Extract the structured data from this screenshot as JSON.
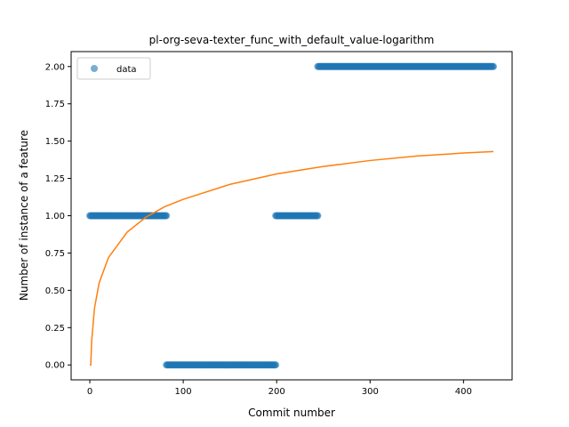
{
  "chart_data": {
    "type": "scatter",
    "title": "pl-org-seva-texter_func_with_default_value-logarithm",
    "xlabel": "Commit number",
    "ylabel": "Number of instance of a feature",
    "xlim": [
      -20,
      452
    ],
    "ylim": [
      -0.1,
      2.1
    ],
    "xticks": [
      0,
      100,
      200,
      300,
      400
    ],
    "yticks": [
      "0.00",
      "0.25",
      "0.50",
      "0.75",
      "1.00",
      "1.25",
      "1.50",
      "1.75",
      "2.00"
    ],
    "grid": false,
    "legend": {
      "placement": "top-left",
      "entries": [
        "data"
      ]
    },
    "series": [
      {
        "name": "data",
        "kind": "markers",
        "color": "#1f77b4",
        "segments": [
          {
            "x_start": 0,
            "x_end": 82,
            "y": 1
          },
          {
            "x_start": 82,
            "x_end": 199,
            "y": 0
          },
          {
            "x_start": 199,
            "x_end": 244,
            "y": 1
          },
          {
            "x_start": 244,
            "x_end": 432,
            "y": 2
          }
        ]
      },
      {
        "kind": "line",
        "color": "#ff7f0e",
        "model": "logarithmic",
        "x_range": [
          0,
          432
        ],
        "samples": [
          {
            "x": 0,
            "y": 0.0
          },
          {
            "x": 1,
            "y": 0.0
          },
          {
            "x": 2,
            "y": 0.16
          },
          {
            "x": 5,
            "y": 0.38
          },
          {
            "x": 10,
            "y": 0.55
          },
          {
            "x": 20,
            "y": 0.72
          },
          {
            "x": 40,
            "y": 0.89
          },
          {
            "x": 60,
            "y": 0.99
          },
          {
            "x": 80,
            "y": 1.06
          },
          {
            "x": 100,
            "y": 1.11
          },
          {
            "x": 150,
            "y": 1.21
          },
          {
            "x": 200,
            "y": 1.28
          },
          {
            "x": 250,
            "y": 1.33
          },
          {
            "x": 300,
            "y": 1.37
          },
          {
            "x": 350,
            "y": 1.4
          },
          {
            "x": 400,
            "y": 1.42
          },
          {
            "x": 432,
            "y": 1.43
          }
        ]
      }
    ]
  }
}
